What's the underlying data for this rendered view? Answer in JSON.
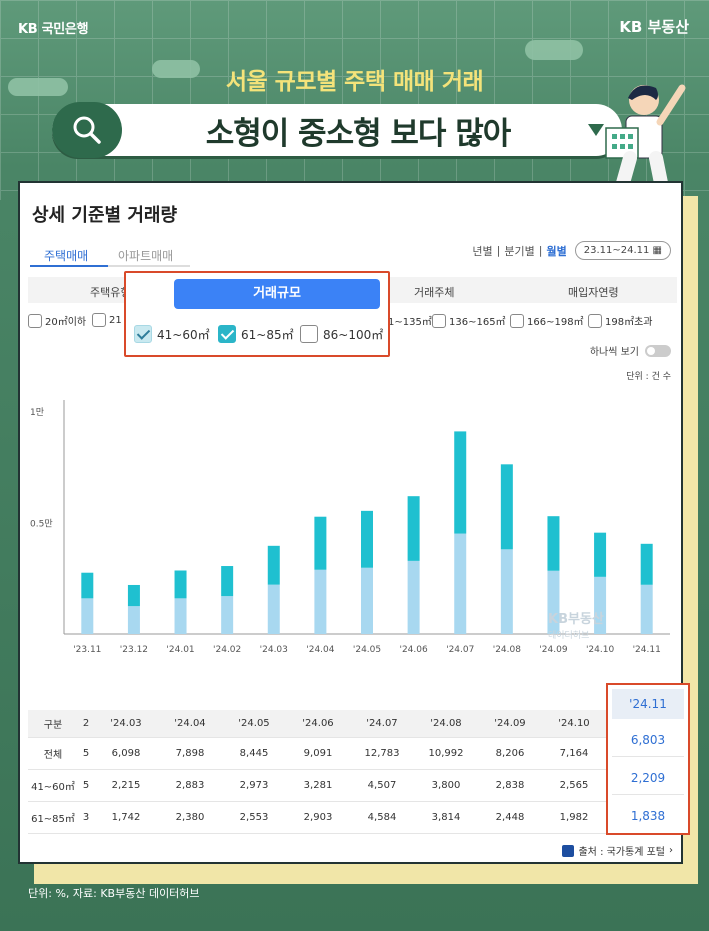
{
  "brand": {
    "left": "KB 국민은행",
    "right": "KB 부동산"
  },
  "header": {
    "subtitle": "서울 규모별 주택 매매 거래",
    "headline": "소형이 중소형 보다 많아"
  },
  "card": {
    "title": "상세 기준별 거래량",
    "tabs": [
      {
        "label": "주택매매",
        "active": true
      },
      {
        "label": "아파트매매",
        "active": false
      }
    ],
    "period": {
      "year": "년별",
      "quarter": "분기별",
      "month": "월별",
      "range": "23.11~24.11"
    },
    "filters": [
      "주택유형",
      "거래규모",
      "거래주체",
      "매입자연령"
    ],
    "size_checks_left": [
      "20㎡이하",
      "21"
    ],
    "size_checks_right": [
      "1~135㎡",
      "136~165㎡",
      "166~198㎡",
      "198㎡초과"
    ],
    "overlay": {
      "button": "거래규모",
      "checks": [
        {
          "label": "41~60㎡",
          "state": "checked-faded"
        },
        {
          "label": "61~85㎡",
          "state": "checked"
        },
        {
          "label": "86~100㎡",
          "state": "unchecked"
        }
      ]
    },
    "toggle_label": "하나씩 보기",
    "unit": "단위 : 건 수",
    "watermark": {
      "line1": "KB부동산",
      "line2": "데이터허브"
    },
    "source": "출처 : 국가통계 포털"
  },
  "chart_data": {
    "type": "bar",
    "stacked": true,
    "categories": [
      "'23.11",
      "'23.12",
      "'24.01",
      "'24.02",
      "'24.03",
      "'24.04",
      "'24.05",
      "'24.06",
      "'24.07",
      "'24.08",
      "'24.09",
      "'24.10",
      "'24.11"
    ],
    "series": [
      {
        "name": "41~60㎡",
        "color": "#a8d8f0",
        "values": [
          1600,
          1250,
          1600,
          1700,
          2215,
          2883,
          2973,
          3281,
          4507,
          3800,
          2838,
          2565,
          2209
        ]
      },
      {
        "name": "61~85㎡",
        "color": "#1fc0d0",
        "values": [
          1150,
          950,
          1250,
          1350,
          1742,
          2380,
          2553,
          2903,
          4584,
          3814,
          2448,
          1982,
          1838
        ]
      }
    ],
    "yticks": [
      {
        "value": 5000,
        "label": "0.5만"
      },
      {
        "value": 10000,
        "label": "1만"
      }
    ],
    "ylim": [
      0,
      10500
    ],
    "legend": "none"
  },
  "table": {
    "header": [
      "구분",
      "2",
      "'24.03",
      "'24.04",
      "'24.05",
      "'24.06",
      "'24.07",
      "'24.08",
      "'24.09",
      "'24.10"
    ],
    "rows": [
      [
        "전체",
        "5",
        "6,098",
        "7,898",
        "8,445",
        "9,091",
        "12,783",
        "10,992",
        "8,206",
        "7,164"
      ],
      [
        "41~60㎡",
        "5",
        "2,215",
        "2,883",
        "2,973",
        "3,281",
        "4,507",
        "3,800",
        "2,838",
        "2,565"
      ],
      [
        "61~85㎡",
        "3",
        "1,742",
        "2,380",
        "2,553",
        "2,903",
        "4,584",
        "3,814",
        "2,448",
        "1,982"
      ]
    ],
    "highlight": {
      "header": "'24.11",
      "values": [
        "6,803",
        "2,209",
        "1,838"
      ]
    }
  },
  "footer": "단위: %, 자료: KB부동산 데이터허브"
}
